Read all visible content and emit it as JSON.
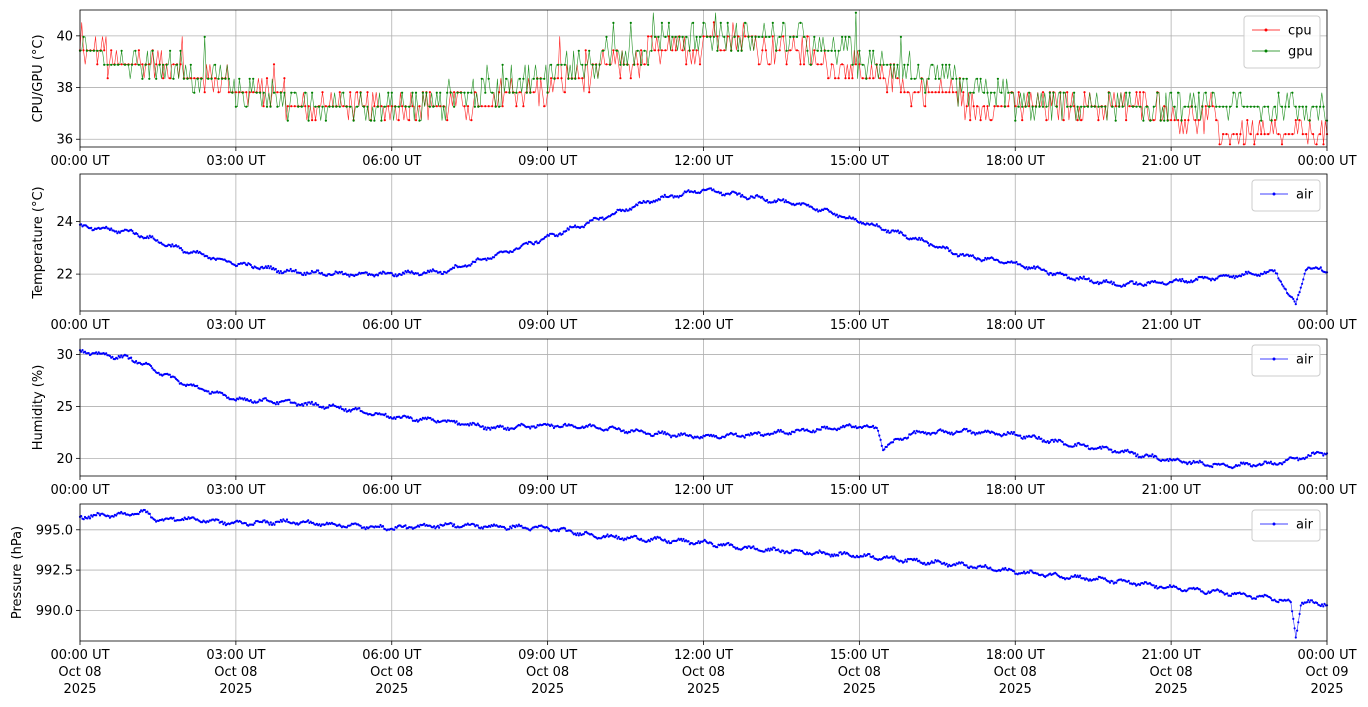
{
  "chart_data": [
    {
      "type": "line",
      "ylabel": "CPU/GPU (°C)",
      "ylim": [
        35.7,
        41.0
      ],
      "yticks": [
        36,
        38,
        40
      ],
      "xlim": [
        "2025-10-08T00:00",
        "2025-10-09T00:00"
      ],
      "xticks": [
        "00:00 UT",
        "03:00 UT",
        "06:00 UT",
        "09:00 UT",
        "12:00 UT",
        "15:00 UT",
        "18:00 UT",
        "21:00 UT",
        "00:00 UT"
      ],
      "grid": true,
      "legend": "top-right",
      "series": [
        {
          "name": "cpu",
          "color": "#ff0000",
          "x_hours": [
            0,
            1,
            2,
            3,
            4,
            5,
            6,
            7,
            8,
            9,
            10,
            11,
            12,
            13,
            14,
            15,
            16,
            17,
            18,
            19,
            20,
            21,
            22,
            23,
            24
          ],
          "values": [
            39.2,
            39.1,
            38.6,
            38.0,
            37.5,
            37.0,
            37.0,
            37.0,
            37.5,
            38.0,
            38.6,
            39.2,
            39.7,
            39.7,
            39.2,
            38.6,
            38.0,
            37.5,
            37.5,
            37.0,
            37.0,
            37.0,
            36.4,
            36.4,
            36.4
          ]
        },
        {
          "name": "gpu",
          "color": "#008000",
          "x_hours": [
            0,
            1,
            2,
            3,
            4,
            5,
            6,
            7,
            8,
            9,
            10,
            11,
            12,
            13,
            14,
            15,
            16,
            17,
            18,
            19,
            20,
            21,
            22,
            23,
            24
          ],
          "values": [
            39.2,
            39.1,
            38.6,
            38.0,
            37.5,
            37.5,
            37.0,
            37.5,
            38.0,
            38.6,
            39.1,
            39.7,
            39.7,
            39.7,
            39.7,
            39.1,
            38.6,
            38.0,
            37.5,
            37.5,
            37.5,
            37.0,
            37.0,
            37.0,
            37.0
          ]
        }
      ]
    },
    {
      "type": "line",
      "ylabel": "Temperature (°C)",
      "ylim": [
        20.6,
        25.8
      ],
      "yticks": [
        22,
        24
      ],
      "xlim": [
        "2025-10-08T00:00",
        "2025-10-09T00:00"
      ],
      "xticks": [
        "00:00 UT",
        "03:00 UT",
        "06:00 UT",
        "09:00 UT",
        "12:00 UT",
        "15:00 UT",
        "18:00 UT",
        "21:00 UT",
        "00:00 UT"
      ],
      "grid": true,
      "legend": "top-right",
      "series": [
        {
          "name": "air",
          "color": "#0000ff",
          "x_hours": [
            0,
            1,
            2,
            3,
            4,
            5,
            6,
            7,
            8,
            9,
            10,
            11,
            12,
            13,
            14,
            15,
            16,
            17,
            18,
            19,
            20,
            21,
            22,
            23,
            23.4,
            23.6,
            24
          ],
          "values": [
            23.8,
            23.6,
            22.9,
            22.4,
            22.1,
            22.0,
            22.0,
            22.1,
            22.7,
            23.4,
            24.1,
            24.8,
            25.2,
            24.9,
            24.6,
            24.0,
            23.4,
            22.7,
            22.4,
            21.9,
            21.6,
            21.7,
            21.9,
            22.1,
            20.8,
            22.3,
            22.1
          ]
        }
      ]
    },
    {
      "type": "line",
      "ylabel": "Humidity (%)",
      "ylim": [
        18.3,
        31.5
      ],
      "yticks": [
        20,
        25,
        30
      ],
      "xlim": [
        "2025-10-08T00:00",
        "2025-10-09T00:00"
      ],
      "xticks": [
        "00:00 UT",
        "03:00 UT",
        "06:00 UT",
        "09:00 UT",
        "12:00 UT",
        "15:00 UT",
        "18:00 UT",
        "21:00 UT",
        "00:00 UT"
      ],
      "grid": true,
      "legend": "top-right",
      "series": [
        {
          "name": "air",
          "color": "#0000ff",
          "x_hours": [
            0,
            1,
            2,
            3,
            4,
            5,
            6,
            7,
            8,
            9,
            10,
            11,
            12,
            13,
            14,
            15,
            15.35,
            15.45,
            16,
            17,
            18,
            19,
            20,
            21,
            22,
            23,
            24
          ],
          "values": [
            30.3,
            29.6,
            27.2,
            25.7,
            25.4,
            24.9,
            24.0,
            23.6,
            22.9,
            23.2,
            23.0,
            22.4,
            22.1,
            22.3,
            22.7,
            23.1,
            22.9,
            21.0,
            22.4,
            22.6,
            22.3,
            21.4,
            20.7,
            19.8,
            19.3,
            19.5,
            20.6
          ]
        }
      ]
    },
    {
      "type": "line",
      "ylabel": "Pressure (hPa)",
      "ylim": [
        988.1,
        996.6
      ],
      "yticks": [
        990.0,
        992.5,
        995.0
      ],
      "ytick_labels": [
        "990.0",
        "992.5",
        "995.0"
      ],
      "xlim": [
        "2025-10-08T00:00",
        "2025-10-09T00:00"
      ],
      "xticks": [
        "00:00 UT",
        "03:00 UT",
        "06:00 UT",
        "09:00 UT",
        "12:00 UT",
        "15:00 UT",
        "18:00 UT",
        "21:00 UT",
        "00:00 UT"
      ],
      "xtick_date_line": [
        "Oct 08",
        "Oct 08",
        "Oct 08",
        "Oct 08",
        "Oct 08",
        "Oct 08",
        "Oct 08",
        "Oct 08",
        "Oct 09"
      ],
      "xtick_year_line": [
        "2025",
        "2025",
        "2025",
        "2025",
        "2025",
        "2025",
        "2025",
        "2025",
        "2025"
      ],
      "grid": true,
      "legend": "top-right",
      "series": [
        {
          "name": "air",
          "color": "#0000ff",
          "x_hours": [
            0,
            0.5,
            1,
            1.25,
            1.5,
            2,
            3,
            4,
            5,
            6,
            7,
            8,
            9,
            10,
            11,
            12,
            13,
            14,
            15,
            16,
            17,
            18,
            19,
            20,
            21,
            22,
            23,
            23.3,
            23.4,
            23.5,
            24
          ],
          "values": [
            995.8,
            995.9,
            996.0,
            996.1,
            995.6,
            995.7,
            995.4,
            995.5,
            995.3,
            995.1,
            995.3,
            995.2,
            995.1,
            994.6,
            994.4,
            994.2,
            993.8,
            993.6,
            993.4,
            993.1,
            992.8,
            992.4,
            992.1,
            991.8,
            991.4,
            991.1,
            990.7,
            990.5,
            988.4,
            990.5,
            990.4
          ]
        }
      ]
    }
  ]
}
